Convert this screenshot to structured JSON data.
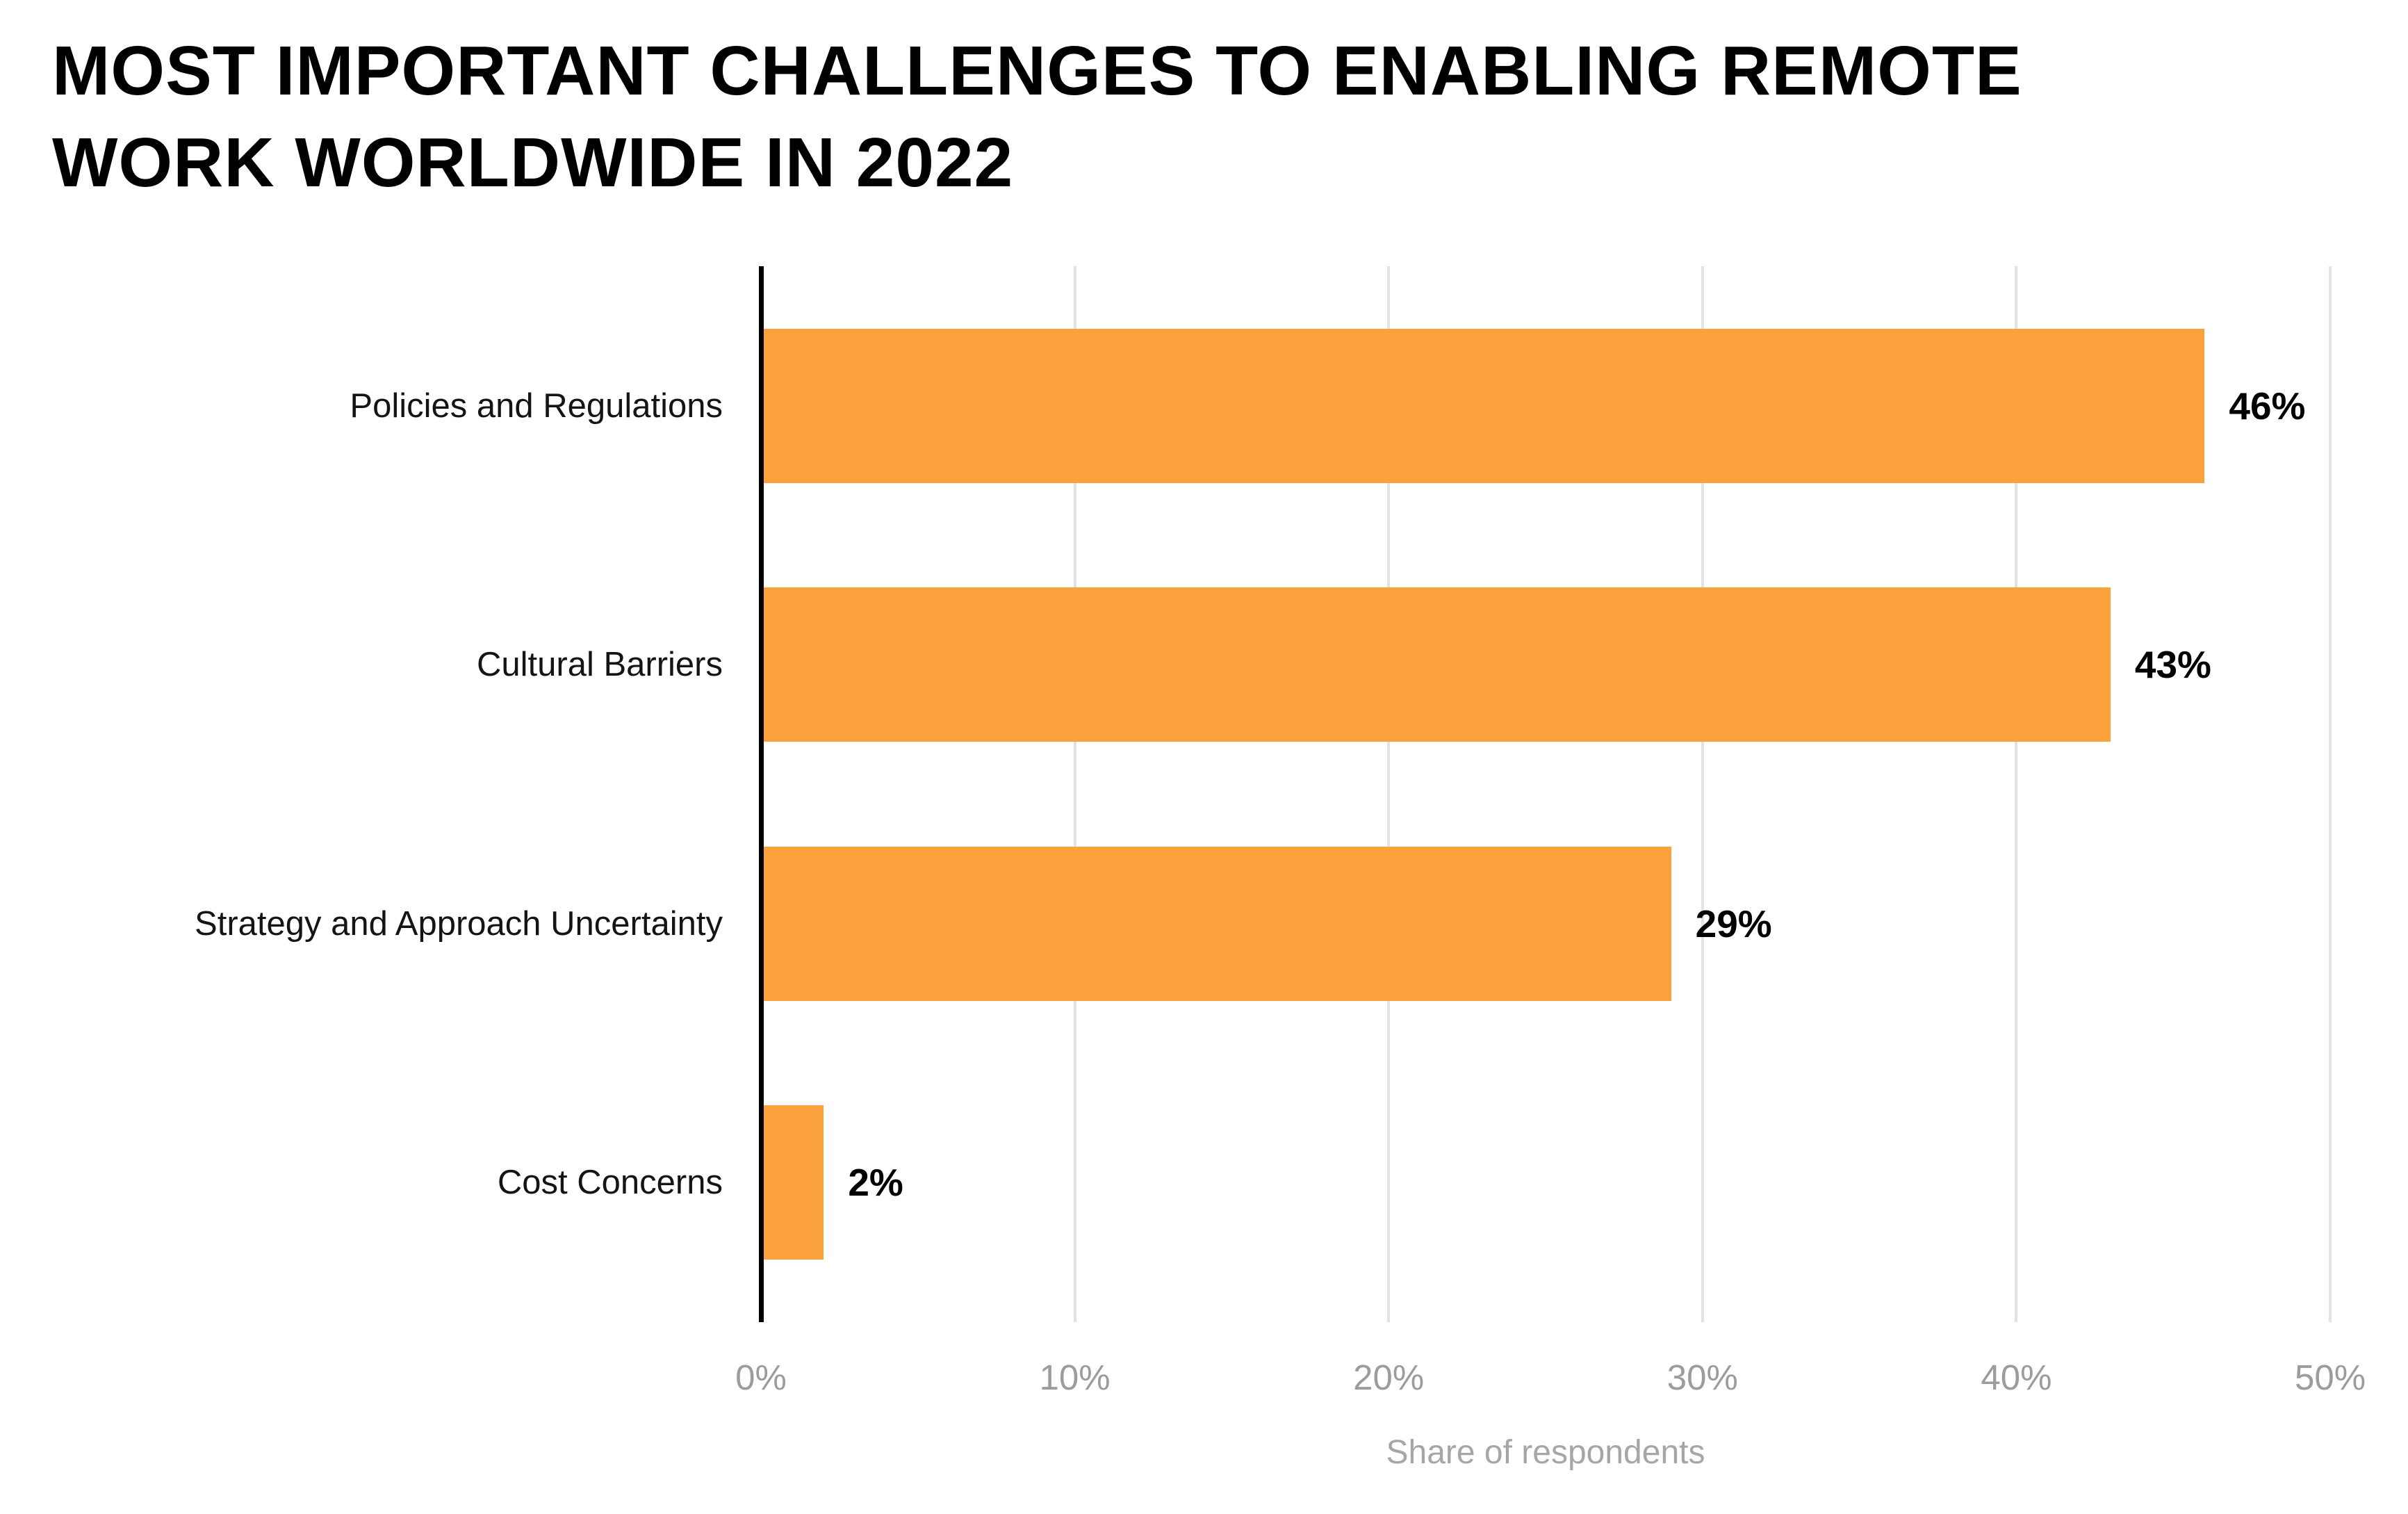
{
  "title_lines": {
    "line1": "MOST IMPORTANT CHALLENGES TO ENABLING REMOTE",
    "line2": "WORK WORLDWIDE IN 2022"
  },
  "chart_data": {
    "type": "bar",
    "orientation": "horizontal",
    "title": "MOST IMPORTANT CHALLENGES TO ENABLING REMOTE WORK WORLDWIDE IN 2022",
    "categories": [
      "Policies and Regulations",
      "Cultural Barriers",
      "Strategy and Approach Uncertainty",
      "Cost Concerns"
    ],
    "values": [
      46,
      43,
      29,
      2
    ],
    "value_labels": [
      "46%",
      "43%",
      "29%",
      "2%"
    ],
    "xlabel": "Share of respondents",
    "ylabel": "",
    "xlim": [
      0,
      50
    ],
    "xticks": [
      {
        "value": 0,
        "label": "0%"
      },
      {
        "value": 10,
        "label": "10%"
      },
      {
        "value": 20,
        "label": "20%"
      },
      {
        "value": 30,
        "label": "30%"
      },
      {
        "value": 40,
        "label": "40%"
      },
      {
        "value": 50,
        "label": "50%"
      }
    ],
    "grid": "vertical",
    "legend": "none"
  },
  "colors": {
    "bar": "#fca23d",
    "title_text": "#000000",
    "category_text": "#141414",
    "value_text": "#000000",
    "tick_text": "#9c9c9c",
    "axis_label_text": "#a6a6a6",
    "gridline": "#e3e3e3",
    "axis_line": "#000000",
    "background": "#ffffff"
  }
}
